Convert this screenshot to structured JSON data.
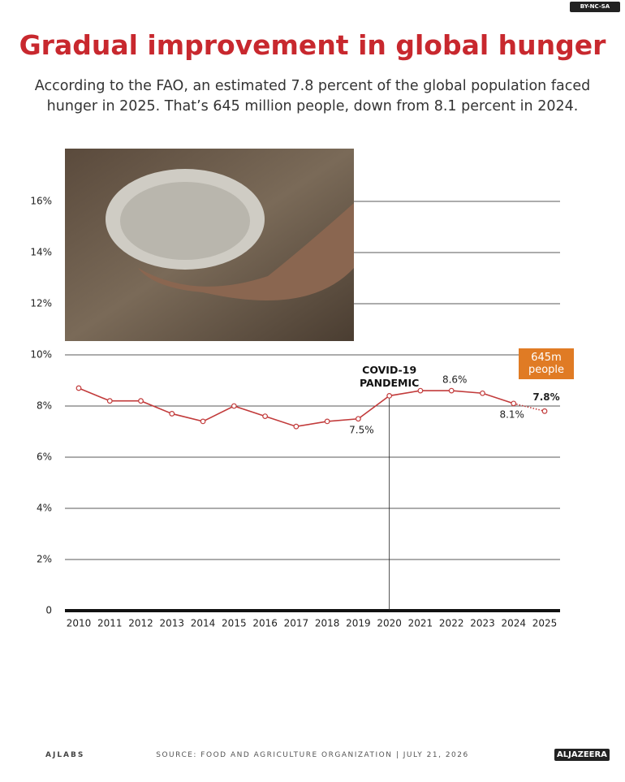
{
  "license": "BY-NC-SA",
  "brand": "AJLABS",
  "logo": "ALJAZEERA",
  "chart_data": {
    "type": "line",
    "title": "Gradual improvement in global hunger",
    "subtitle": "According to the FAO, an estimated 7.8 percent of the global population faced hunger in 2025. That’s 645 million people, down from 8.1 percent in 2024.",
    "source": "SOURCE:  FOOD AND AGRICULTURE ORGANIZATION  |  JULY 21, 2026",
    "categories": [
      "2010",
      "2011",
      "2012",
      "2013",
      "2014",
      "2015",
      "2016",
      "2017",
      "2018",
      "2019",
      "2020",
      "2021",
      "2022",
      "2023",
      "2024",
      "2025"
    ],
    "values": [
      8.7,
      8.2,
      8.2,
      7.7,
      7.4,
      8.0,
      7.6,
      7.2,
      7.4,
      7.5,
      8.4,
      8.6,
      8.6,
      8.5,
      8.1,
      7.8
    ],
    "value_labels": [
      null,
      null,
      null,
      null,
      null,
      null,
      null,
      null,
      null,
      "7.5%",
      null,
      null,
      "8.6%",
      null,
      "8.1%",
      "7.8%"
    ],
    "color": "#c23b3b",
    "ylim": [
      0,
      16
    ],
    "yticks": [
      0,
      {
        "value": 2,
        "label": "2%"
      },
      {
        "value": 4,
        "label": "4%"
      },
      {
        "value": 6,
        "label": "6%"
      },
      {
        "value": 8,
        "label": "8%"
      },
      {
        "value": 10,
        "label": "10%"
      },
      {
        "value": 12,
        "label": "12%"
      },
      {
        "value": 14,
        "label": "14%"
      },
      {
        "value": 16,
        "label": "16%"
      }
    ],
    "grid": true,
    "annotation": {
      "text": "COVID-19 PANDEMIC",
      "at": "2020"
    },
    "callout": "645m people"
  }
}
